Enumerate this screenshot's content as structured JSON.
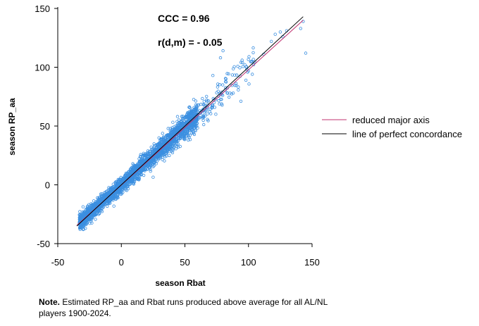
{
  "chart_data": {
    "type": "scatter",
    "title": "",
    "xlabel": "season Rbat",
    "ylabel": "season RP_aa",
    "xlim": [
      -50,
      150
    ],
    "ylim": [
      -50,
      150
    ],
    "x_ticks": [
      -50,
      0,
      50,
      100,
      150
    ],
    "y_ticks": [
      -50,
      0,
      50,
      100,
      150
    ],
    "x_tick_labels": [
      "-50",
      "0",
      "50",
      "100",
      "150"
    ],
    "y_tick_labels": [
      "-50",
      "0",
      "50",
      "100",
      "150"
    ],
    "grid": false,
    "legend_position": "right",
    "annotations": {
      "ccc": "CCC = 0.96",
      "rdm": "r(d,m) = - 0.05"
    },
    "point_color": "#3b8fe0",
    "x_range_observed": [
      -37,
      145
    ],
    "series": [
      {
        "name": "reduced major axis",
        "type": "line",
        "color": "#c0306f",
        "x": [
          -35,
          143
        ],
        "y": [
          -34.5,
          140
        ]
      },
      {
        "name": "line of perfect concordance",
        "type": "line",
        "color": "#000000",
        "x": [
          -35,
          143
        ],
        "y": [
          -35,
          143
        ]
      }
    ],
    "notable_points": {
      "x": [
        145,
        143,
        141,
        130,
        127,
        125,
        121,
        118,
        112,
        103,
        98,
        95,
        88,
        80,
        78,
        72
      ],
      "y": [
        112,
        139,
        133,
        131,
        126,
        130,
        128,
        122,
        111,
        94,
        89,
        106,
        78,
        114,
        108,
        93
      ]
    }
  },
  "note": {
    "label": "Note.",
    "text": "Estimated RP_aa and Rbat runs produced  above average for all AL/NL players 1900-2024."
  }
}
